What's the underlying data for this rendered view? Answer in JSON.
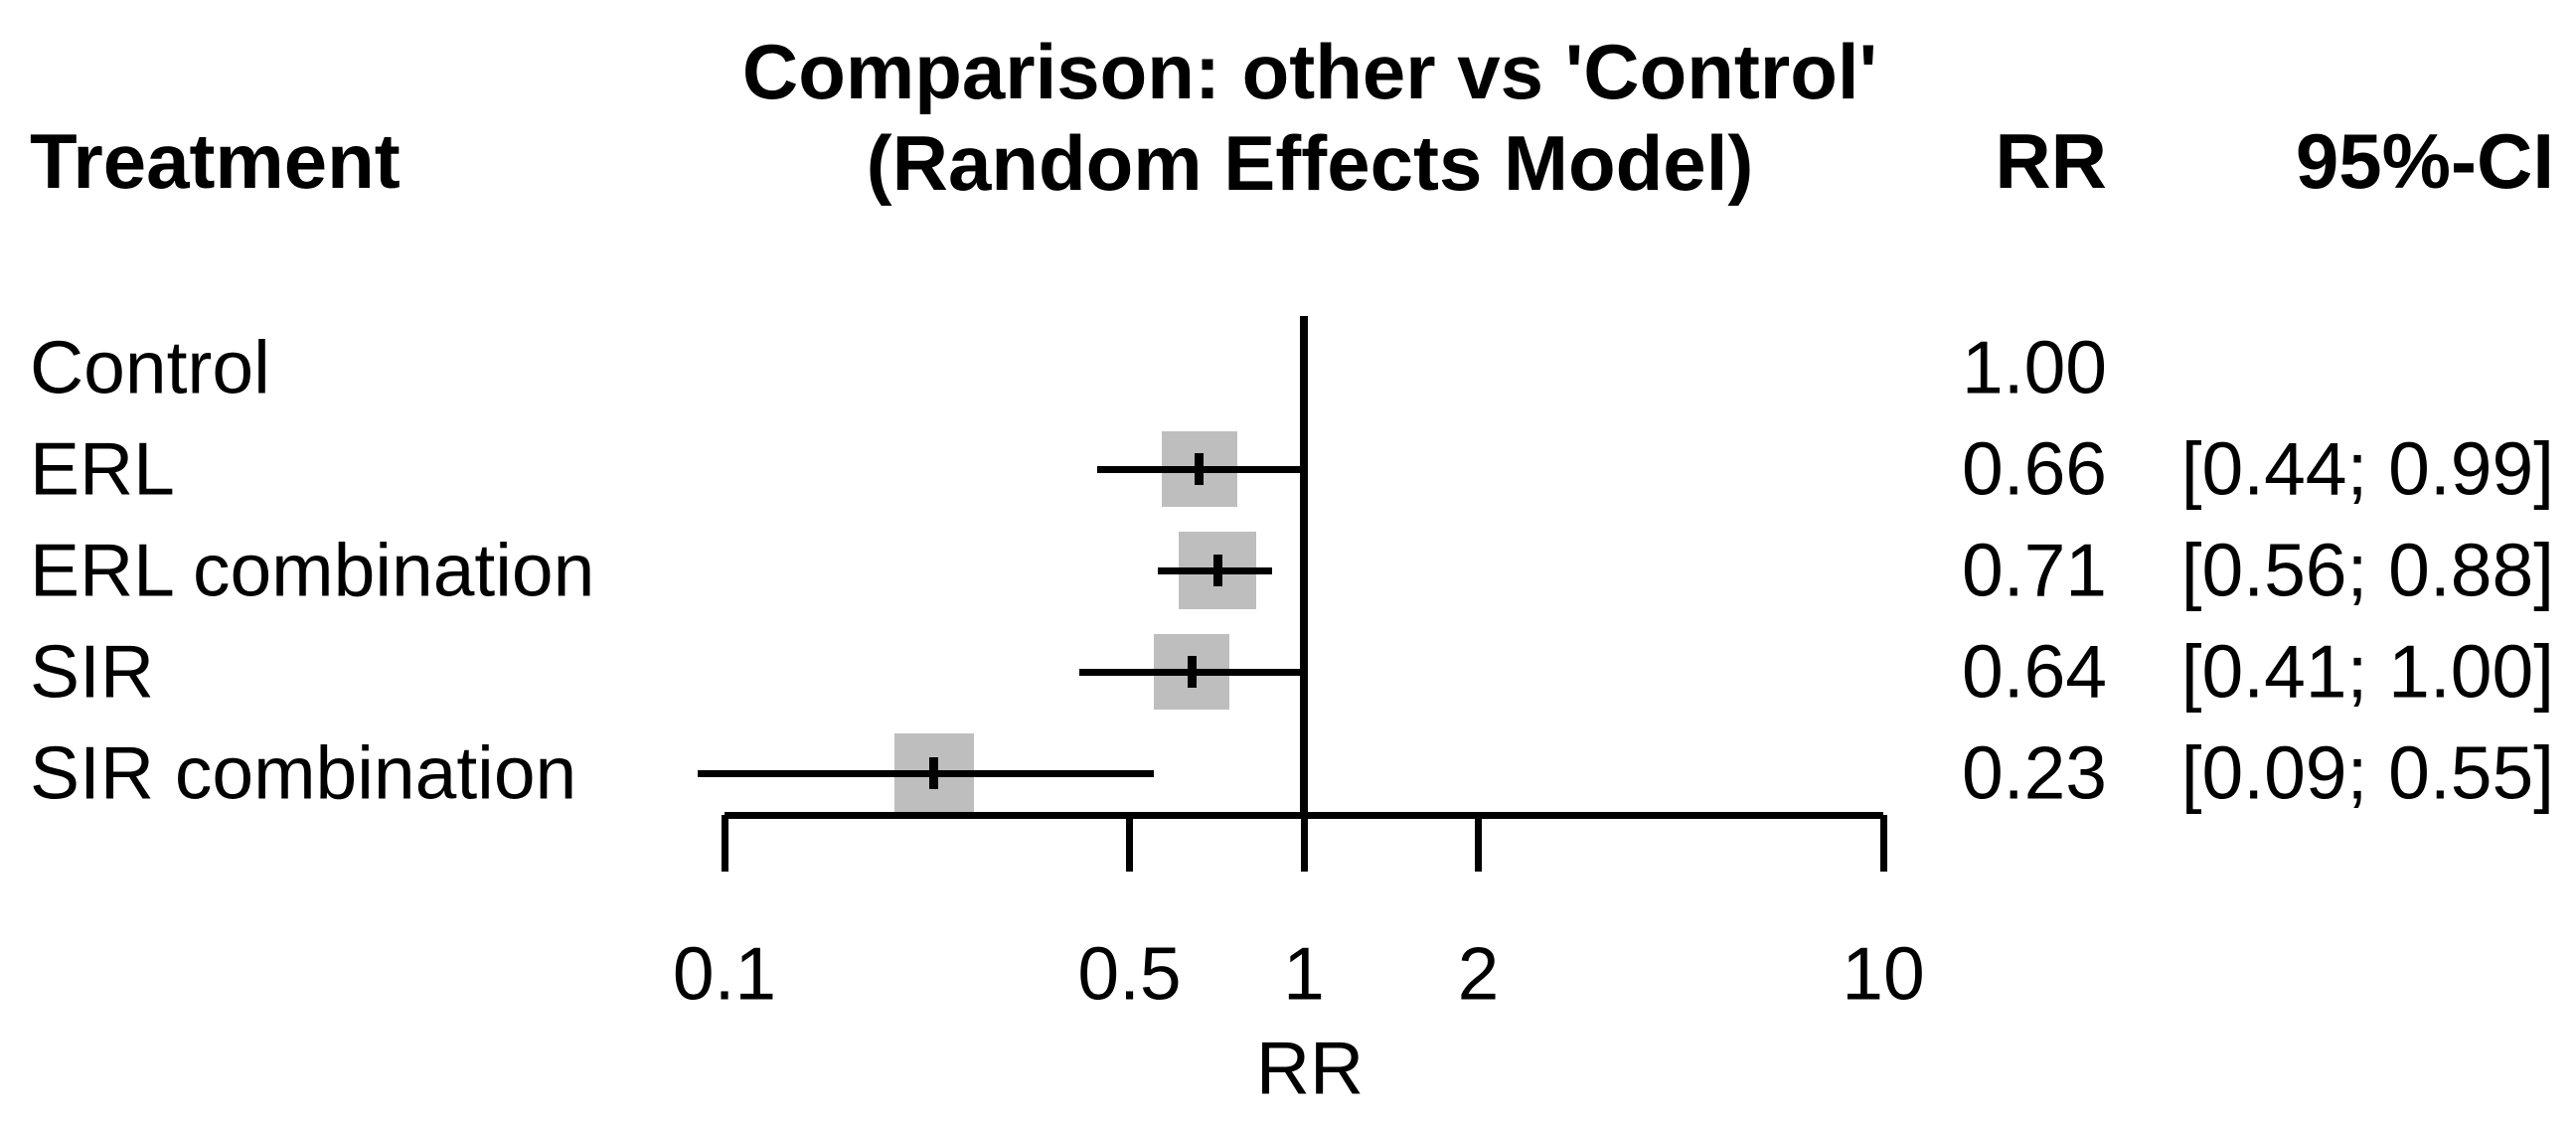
{
  "figure": {
    "background": "#ffffff",
    "text_color": "#000000",
    "marker_color": "#bebebe"
  },
  "chart_data": {
    "type": "forest",
    "title_line1": "Comparison: other vs 'Control'",
    "title_line2": "(Random Effects Model)",
    "columns": {
      "treatment": "Treatment",
      "rr": "RR",
      "ci": "95%-CI"
    },
    "xlabel": "RR",
    "scale": "log10",
    "x_range": [
      0.1,
      10
    ],
    "x_ticks": [
      0.1,
      0.5,
      1,
      2,
      10
    ],
    "x_tick_labels": [
      "0.1",
      "0.5",
      "1",
      "2",
      "10"
    ],
    "ref_line": 1,
    "legend_position": "none",
    "grid": false,
    "rows": [
      {
        "treatment": "Control",
        "rr_label": "1.00",
        "ci_label": "",
        "rr": 1.0,
        "ci_low": null,
        "ci_high": null,
        "has_marker": false,
        "marker_size": 0
      },
      {
        "treatment": "ERL",
        "rr_label": "0.66",
        "ci_label": "[0.44; 0.99]",
        "rr": 0.66,
        "ci_low": 0.44,
        "ci_high": 0.99,
        "has_marker": true,
        "marker_size": 76
      },
      {
        "treatment": "ERL combination",
        "rr_label": "0.71",
        "ci_label": "[0.56; 0.88]",
        "rr": 0.71,
        "ci_low": 0.56,
        "ci_high": 0.88,
        "has_marker": true,
        "marker_size": 78
      },
      {
        "treatment": "SIR",
        "rr_label": "0.64",
        "ci_label": "[0.41; 1.00]",
        "rr": 0.64,
        "ci_low": 0.41,
        "ci_high": 1.0,
        "has_marker": true,
        "marker_size": 76
      },
      {
        "treatment": "SIR combination",
        "rr_label": "0.23",
        "ci_label": "[0.09; 0.55]",
        "rr": 0.23,
        "ci_low": 0.09,
        "ci_high": 0.55,
        "has_marker": true,
        "marker_size": 80
      }
    ]
  }
}
